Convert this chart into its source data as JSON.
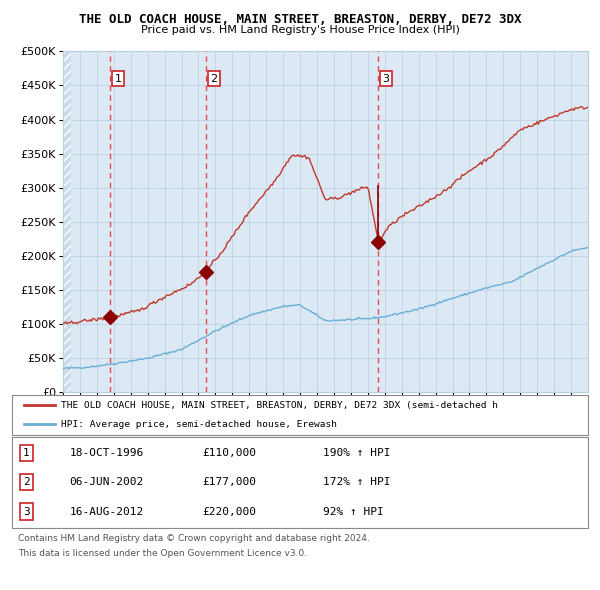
{
  "title": "THE OLD COACH HOUSE, MAIN STREET, BREASTON, DERBY, DE72 3DX",
  "subtitle": "Price paid vs. HM Land Registry's House Price Index (HPI)",
  "bg_color": "#dce9f5",
  "grid_color": "#b8cfe0",
  "red_line_color": "#c0392b",
  "blue_line_color": "#6baed6",
  "dashed_color": "#e05050",
  "sale_marker_color": "#8b0000",
  "ylim": [
    0,
    500000
  ],
  "yticks": [
    0,
    50000,
    100000,
    150000,
    200000,
    250000,
    300000,
    350000,
    400000,
    450000,
    500000
  ],
  "xstart_year": 1994,
  "xend_year": 2025,
  "sale1": {
    "year": 1996.8,
    "price": 110000,
    "label": "1",
    "date": "18-OCT-1996",
    "pct": "190%"
  },
  "sale2": {
    "year": 2002.45,
    "price": 177000,
    "label": "2",
    "date": "06-JUN-2002",
    "pct": "172%"
  },
  "sale3": {
    "year": 2012.62,
    "price": 220000,
    "label": "3",
    "date": "16-AUG-2012",
    "pct": "92%"
  },
  "legend_entry1": "THE OLD COACH HOUSE, MAIN STREET, BREASTON, DERBY, DE72 3DX (semi-detached h",
  "legend_entry2": "HPI: Average price, semi-detached house, Erewash",
  "footer1": "Contains HM Land Registry data © Crown copyright and database right 2024.",
  "footer2": "This data is licensed under the Open Government Licence v3.0."
}
